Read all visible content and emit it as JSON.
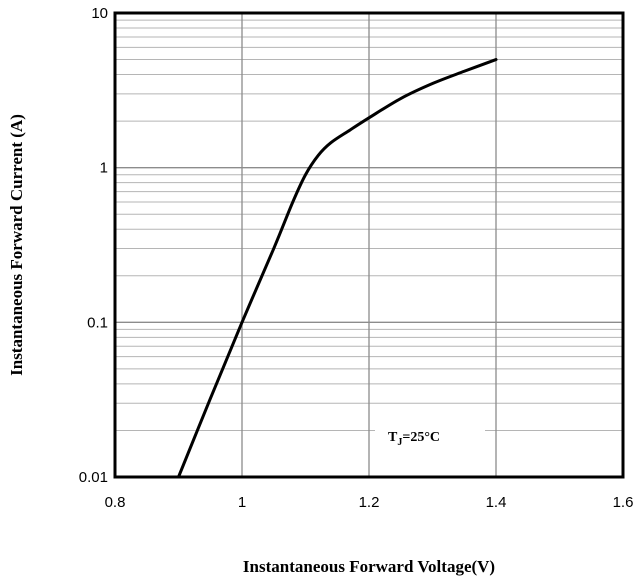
{
  "chart_data": {
    "type": "line",
    "title": "",
    "xlabel": "Instantaneous Forward Voltage(V)",
    "ylabel": "Instantaneous Forward Current (A)",
    "xlim": [
      0.8,
      1.6
    ],
    "ylim": [
      0.01,
      10
    ],
    "y_scale": "log",
    "grid": true,
    "x_ticks": [
      "0.8",
      "1",
      "1.2",
      "1.4",
      "1.6"
    ],
    "y_ticks": [
      "0.01",
      "0.1",
      "1",
      "10"
    ],
    "series": [
      {
        "color": "#000000",
        "x": [
          0.9,
          0.95,
          1.0,
          1.05,
          1.08,
          1.1,
          1.12,
          1.14,
          1.17,
          1.2,
          1.25,
          1.3,
          1.35,
          1.4
        ],
        "y": [
          0.01,
          0.032,
          0.1,
          0.3,
          0.6,
          0.9,
          1.2,
          1.45,
          1.75,
          2.1,
          2.8,
          3.5,
          4.2,
          5.0
        ]
      }
    ],
    "annotation": {
      "main": "T",
      "sub": "J",
      "rest": "=25°C"
    }
  }
}
